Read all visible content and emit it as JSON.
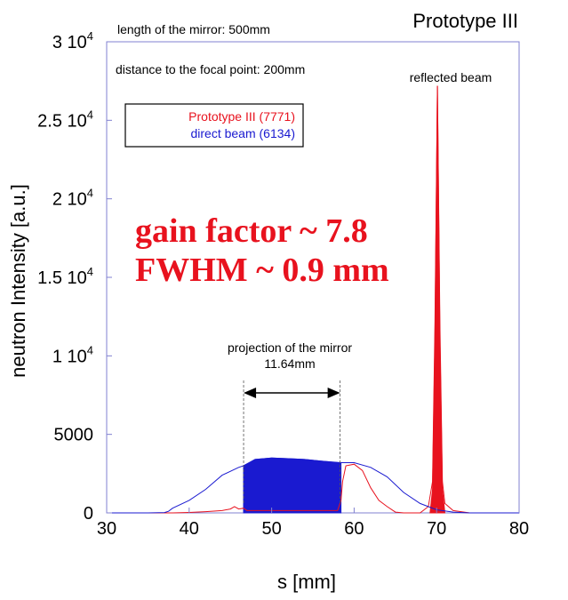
{
  "chart_data": {
    "type": "line",
    "title": "Prototype III",
    "xlabel": "s [mm]",
    "ylabel": "neutron Intensity [a.u.]",
    "xlim": [
      30,
      80
    ],
    "ylim": [
      0,
      30000
    ],
    "x_ticks": [
      "30",
      "40",
      "50",
      "60",
      "70",
      "80"
    ],
    "y_ticks": [
      {
        "value": 0,
        "label": "0"
      },
      {
        "value": 5000,
        "label": "5000"
      },
      {
        "value": 10000,
        "base": "1 10",
        "exp": "4"
      },
      {
        "value": 15000,
        "base": "1.5 10",
        "exp": "4"
      },
      {
        "value": 20000,
        "base": "2 10",
        "exp": "4"
      },
      {
        "value": 25000,
        "base": "2.5 10",
        "exp": "4"
      },
      {
        "value": 30000,
        "base": "3 10",
        "exp": "4"
      }
    ],
    "legend": {
      "position": "top-left",
      "entries": [
        {
          "label": "Prototype III (7771)",
          "color": "#e8121e"
        },
        {
          "label": "direct beam (6134)",
          "color": "#1a1ad0"
        }
      ]
    },
    "series": [
      {
        "name": "Prototype III (7771)",
        "color": "#e8121e",
        "points": [
          [
            30,
            0
          ],
          [
            36,
            0
          ],
          [
            38,
            0
          ],
          [
            40,
            30
          ],
          [
            42,
            80
          ],
          [
            44,
            150
          ],
          [
            45,
            250
          ],
          [
            45.5,
            400
          ],
          [
            46,
            250
          ],
          [
            46.6,
            300
          ],
          [
            47,
            150
          ],
          [
            48,
            150
          ],
          [
            50,
            150
          ],
          [
            52,
            150
          ],
          [
            54,
            150
          ],
          [
            56,
            150
          ],
          [
            58,
            150
          ],
          [
            58.4,
            800
          ],
          [
            58.6,
            2000
          ],
          [
            59,
            3000
          ],
          [
            60,
            3100
          ],
          [
            61,
            2700
          ],
          [
            62,
            1600
          ],
          [
            63,
            800
          ],
          [
            64,
            400
          ],
          [
            65,
            50
          ],
          [
            66,
            0
          ],
          [
            68,
            0
          ],
          [
            69,
            400
          ],
          [
            69.5,
            2000
          ],
          [
            69.8,
            12000
          ],
          [
            70.1,
            27200
          ],
          [
            70.4,
            12000
          ],
          [
            70.7,
            2000
          ],
          [
            71,
            600
          ],
          [
            72,
            150
          ],
          [
            74,
            0
          ],
          [
            80,
            0
          ]
        ]
      },
      {
        "name": "direct beam (6134)",
        "color": "#1a1ad0",
        "points": [
          [
            30,
            0
          ],
          [
            32,
            0
          ],
          [
            35,
            0
          ],
          [
            37,
            20
          ],
          [
            37.5,
            100
          ],
          [
            38,
            300
          ],
          [
            40,
            800
          ],
          [
            42,
            1500
          ],
          [
            44,
            2400
          ],
          [
            46,
            2900
          ],
          [
            46.6,
            3000
          ],
          [
            48,
            3400
          ],
          [
            50,
            3500
          ],
          [
            52,
            3450
          ],
          [
            54,
            3400
          ],
          [
            56,
            3300
          ],
          [
            58,
            3200
          ],
          [
            58.4,
            3200
          ],
          [
            60,
            3200
          ],
          [
            62,
            2900
          ],
          [
            64,
            2300
          ],
          [
            66,
            1300
          ],
          [
            68,
            600
          ],
          [
            70,
            200
          ],
          [
            72,
            50
          ],
          [
            74,
            0
          ],
          [
            80,
            0
          ]
        ]
      },
      {
        "name": "direct beam fill",
        "color": "#1a1ad0",
        "fill": true,
        "points": [
          [
            46.6,
            0
          ],
          [
            46.6,
            3000
          ],
          [
            48,
            3400
          ],
          [
            50,
            3500
          ],
          [
            52,
            3450
          ],
          [
            54,
            3400
          ],
          [
            56,
            3300
          ],
          [
            58.4,
            3200
          ],
          [
            58.4,
            0
          ]
        ]
      },
      {
        "name": "reflected beam fill",
        "color": "#e8121e",
        "fill": true,
        "points": [
          [
            69.2,
            0
          ],
          [
            69.5,
            1500
          ],
          [
            69.8,
            11000
          ],
          [
            70.1,
            27200
          ],
          [
            70.4,
            11000
          ],
          [
            70.7,
            1500
          ],
          [
            71,
            0
          ]
        ]
      }
    ],
    "annotations": {
      "length": "length of the mirror: 500mm",
      "distance": "distance to the focal point: 200mm",
      "reflected": "reflected beam",
      "gain": "gain factor  ~ 7.8",
      "fwhm": "FWHM ~ 0.9 mm",
      "projection": "projection of the mirror",
      "projection_value": "11.64mm",
      "projection_range": [
        46.6,
        58.3
      ]
    }
  }
}
